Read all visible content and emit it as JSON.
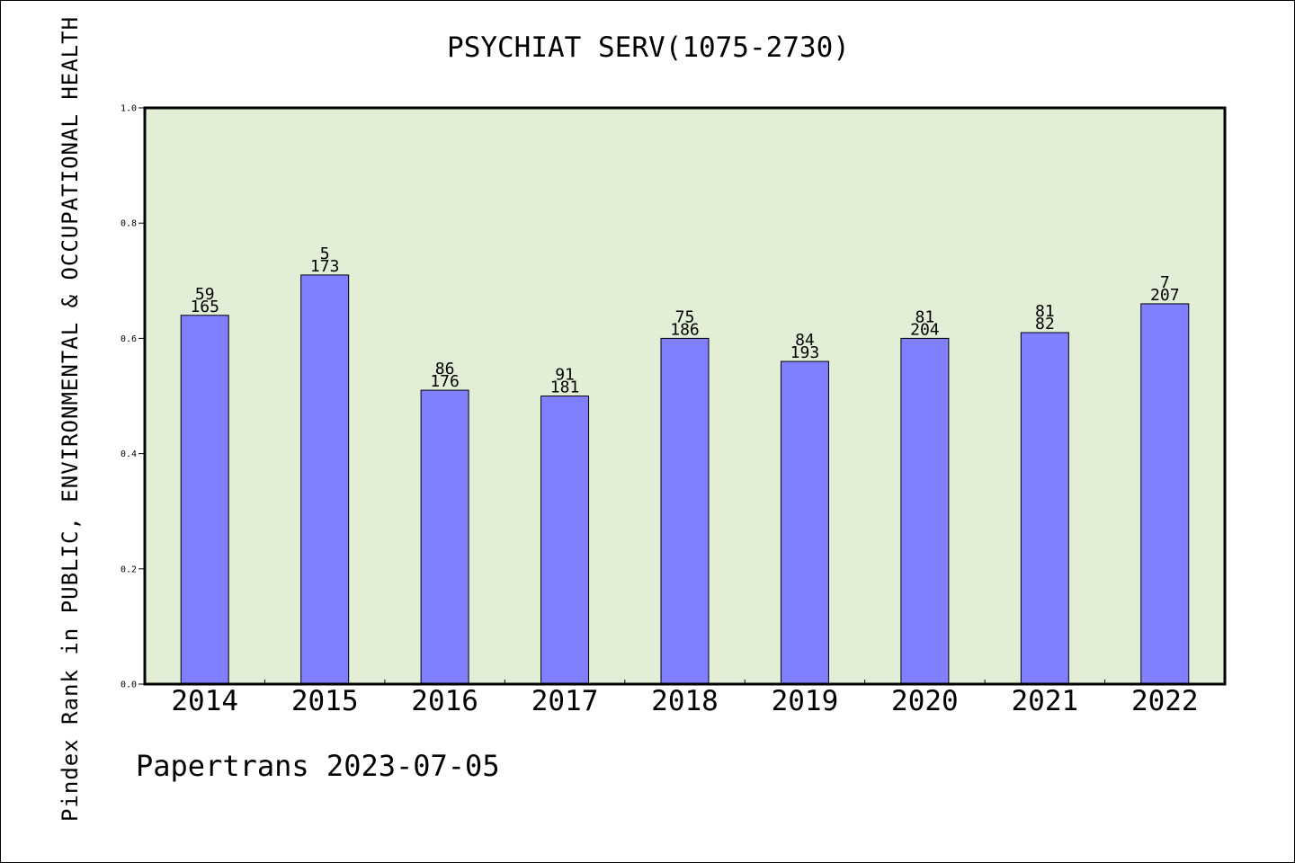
{
  "chart_data": {
    "type": "bar",
    "title": "PSYCHIAT SERV(1075-2730)",
    "xlabel": "",
    "ylabel": "Pindex Rank in PUBLIC, ENVIRONMENTAL & OCCUPATIONAL HEALTH",
    "ylim": [
      0,
      1.0
    ],
    "yticks": [
      "0.0",
      "0.2",
      "0.4",
      "0.6",
      "0.8",
      "1.0"
    ],
    "categories": [
      "2014",
      "2015",
      "2016",
      "2017",
      "2018",
      "2019",
      "2020",
      "2021",
      "2022"
    ],
    "values": [
      0.64,
      0.71,
      0.51,
      0.5,
      0.6,
      0.56,
      0.6,
      0.61,
      0.66
    ],
    "label_top": [
      "59",
      "5",
      "86",
      "91",
      "75",
      "84",
      "81",
      "81",
      "7"
    ],
    "label_bottom": [
      "165",
      "173",
      "176",
      "181",
      "186",
      "193",
      "204",
      "82",
      "207"
    ],
    "grid": false,
    "legend": "none",
    "colors": {
      "plot_bg": "#e2efd6",
      "bar": "#8080ff",
      "bar_edge": "#000000"
    }
  },
  "footer": {
    "text": "Papertrans 2023-07-05"
  }
}
